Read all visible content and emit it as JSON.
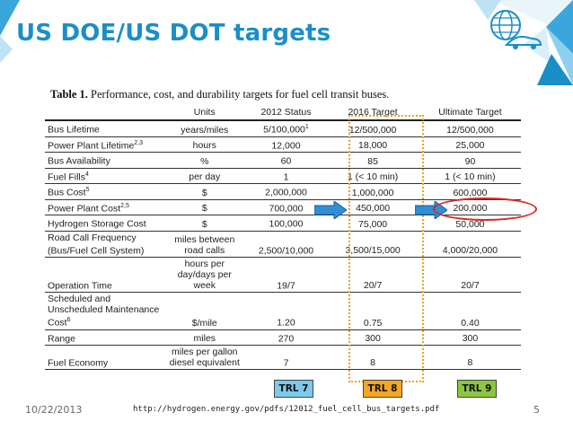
{
  "slide": {
    "title": "US DOE/US DOT targets",
    "date": "10/22/2013",
    "url": "http://hydrogen.energy.gov/pdfs/12012_fuel_cell_bus_targets.pdf",
    "page_number": "5",
    "accent_color": "#1a8fc7",
    "icon": "globe-car-icon"
  },
  "table": {
    "caption_bold": "Table 1.",
    "caption_text": "Performance, cost, and durability targets for fuel cell transit buses.",
    "headers": [
      "",
      "Units",
      "2012 Status",
      "2016 Target",
      "Ultimate Target"
    ],
    "rows": [
      {
        "param": "Bus Lifetime",
        "sup": "",
        "units": "years/miles",
        "s2012": "5/100,000",
        "s2012_sup": "1",
        "t2016": "12/500,000",
        "ult": "12/500,000"
      },
      {
        "param": "Power Plant Lifetime",
        "sup": "2,3",
        "units": "hours",
        "s2012": "12,000",
        "s2012_sup": "",
        "t2016": "18,000",
        "ult": "25,000"
      },
      {
        "param": "Bus Availability",
        "sup": "",
        "units": "%",
        "s2012": "60",
        "s2012_sup": "",
        "t2016": "85",
        "ult": "90"
      },
      {
        "param": "Fuel Fills",
        "sup": "4",
        "units": "per day",
        "s2012": "1",
        "s2012_sup": "",
        "t2016": "1 (< 10 min)",
        "ult": "1 (< 10 min)"
      },
      {
        "param": "Bus Cost",
        "sup": "5",
        "units": "$",
        "s2012": "2,000,000",
        "s2012_sup": "",
        "t2016": "1,000,000",
        "ult": "600,000"
      },
      {
        "param": "Power Plant Cost",
        "sup": "2,5",
        "units": "$",
        "s2012": "700,000",
        "s2012_sup": "",
        "t2016": "450,000",
        "ult": "200,000"
      },
      {
        "param": "Hydrogen Storage Cost",
        "sup": "",
        "units": "$",
        "s2012": "100,000",
        "s2012_sup": "",
        "t2016": "75,000",
        "ult": "50,000"
      },
      {
        "param": "Road Call Frequency (Bus/Fuel Cell System)",
        "sup": "",
        "units": "miles between road calls",
        "s2012": "2,500/10,000",
        "s2012_sup": "",
        "t2016": "3,500/15,000",
        "ult": "4,000/20,000"
      },
      {
        "param": "Operation Time",
        "sup": "",
        "units": "hours per day/days per week",
        "s2012": "19/7",
        "s2012_sup": "",
        "t2016": "20/7",
        "ult": "20/7"
      },
      {
        "param": "Scheduled and Unscheduled Maintenance Cost",
        "sup": "6",
        "units": "$/mile",
        "s2012": "1.20",
        "s2012_sup": "",
        "t2016": "0.75",
        "ult": "0.40"
      },
      {
        "param": "Range",
        "sup": "",
        "units": "miles",
        "s2012": "270",
        "s2012_sup": "",
        "t2016": "300",
        "ult": "300"
      },
      {
        "param": "Fuel Economy",
        "sup": "",
        "units": "miles per gallon diesel equivalent",
        "s2012": "7",
        "s2012_sup": "",
        "t2016": "8",
        "ult": "8"
      }
    ]
  },
  "trl_badges": [
    {
      "label": "TRL 7",
      "color": "#7ec8ec"
    },
    {
      "label": "TRL 8",
      "color": "#f5a623"
    },
    {
      "label": "TRL 9",
      "color": "#8cc63f"
    }
  ]
}
